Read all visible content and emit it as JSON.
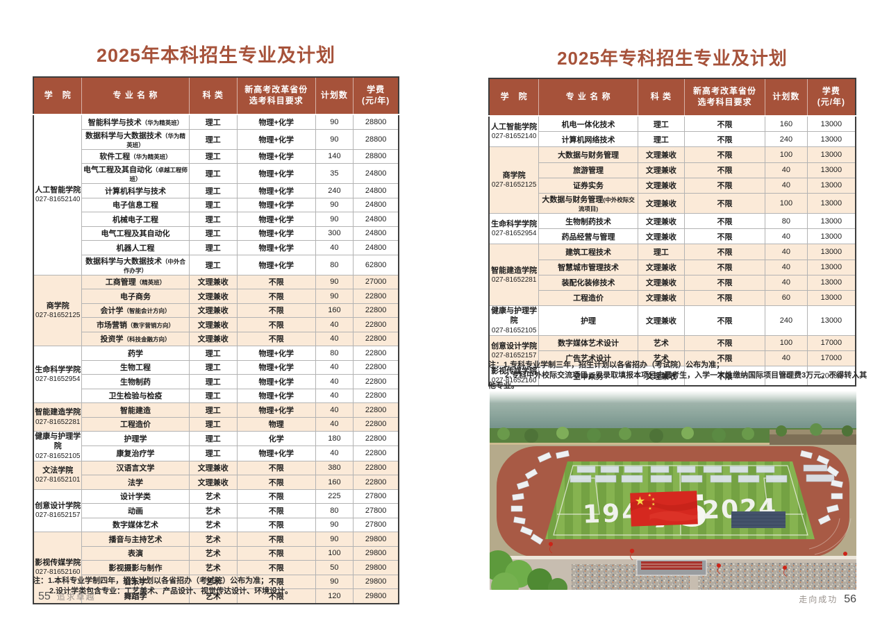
{
  "colors": {
    "accent": "#a6523a",
    "row_alt": "#fbead8",
    "flag_red": "#d5281f",
    "track_red": "#a85a45"
  },
  "left_table": {
    "title": "2025年本科招生专业及计划",
    "headers": [
      "学　院",
      "专 业 名 称",
      "科 类",
      "新高考改革省份\n选考科目要求",
      "计划数",
      "学费\n(元/年)"
    ],
    "groups": [
      {
        "college": "人工智能学院",
        "phone": "027-81652140",
        "rows": [
          {
            "major": "智能科学与技术（华为精英班）",
            "category": "理工",
            "subjects": "物理+化学",
            "plan": "90",
            "fee": "28800"
          },
          {
            "major": "数据科学与大数据技术（华为精英班）",
            "category": "理工",
            "subjects": "物理+化学",
            "plan": "90",
            "fee": "28800"
          },
          {
            "major": "软件工程（华为精英班）",
            "category": "理工",
            "subjects": "物理+化学",
            "plan": "140",
            "fee": "28800"
          },
          {
            "major": "电气工程及其自动化（卓越工程师班）",
            "category": "理工",
            "subjects": "物理+化学",
            "plan": "35",
            "fee": "24800"
          },
          {
            "major": "计算机科学与技术",
            "category": "理工",
            "subjects": "物理+化学",
            "plan": "240",
            "fee": "24800"
          },
          {
            "major": "电子信息工程",
            "category": "理工",
            "subjects": "物理+化学",
            "plan": "90",
            "fee": "24800"
          },
          {
            "major": "机械电子工程",
            "category": "理工",
            "subjects": "物理+化学",
            "plan": "90",
            "fee": "24800"
          },
          {
            "major": "电气工程及其自动化",
            "category": "理工",
            "subjects": "物理+化学",
            "plan": "300",
            "fee": "24800"
          },
          {
            "major": "机器人工程",
            "category": "理工",
            "subjects": "物理+化学",
            "plan": "40",
            "fee": "24800"
          },
          {
            "major": "数据科学与大数据技术（中外合作办学）",
            "category": "理工",
            "subjects": "物理+化学",
            "plan": "80",
            "fee": "62800"
          }
        ]
      },
      {
        "college": "商学院",
        "phone": "027-81652125",
        "rows": [
          {
            "major": "工商管理（精英班）",
            "category": "文理兼收",
            "subjects": "不限",
            "plan": "90",
            "fee": "27000"
          },
          {
            "major": "电子商务",
            "category": "文理兼收",
            "subjects": "不限",
            "plan": "90",
            "fee": "22800"
          },
          {
            "major": "会计学（智能会计方向）",
            "category": "文理兼收",
            "subjects": "不限",
            "plan": "160",
            "fee": "22800"
          },
          {
            "major": "市场营销（数字营销方向）",
            "category": "文理兼收",
            "subjects": "不限",
            "plan": "40",
            "fee": "22800"
          },
          {
            "major": "投资学（科技金融方向）",
            "category": "文理兼收",
            "subjects": "不限",
            "plan": "40",
            "fee": "22800"
          }
        ]
      },
      {
        "college": "生命科学学院",
        "phone": "027-81652954",
        "rows": [
          {
            "major": "药学",
            "category": "理工",
            "subjects": "物理+化学",
            "plan": "80",
            "fee": "22800"
          },
          {
            "major": "生物工程",
            "category": "理工",
            "subjects": "物理+化学",
            "plan": "40",
            "fee": "22800"
          },
          {
            "major": "生物制药",
            "category": "理工",
            "subjects": "物理+化学",
            "plan": "40",
            "fee": "22800"
          },
          {
            "major": "卫生检验与检疫",
            "category": "理工",
            "subjects": "物理+化学",
            "plan": "40",
            "fee": "22800"
          }
        ]
      },
      {
        "college": "智能建造学院",
        "phone": "027-81652281",
        "rows": [
          {
            "major": "智能建造",
            "category": "理工",
            "subjects": "物理+化学",
            "plan": "40",
            "fee": "22800"
          },
          {
            "major": "工程造价",
            "category": "理工",
            "subjects": "物理",
            "plan": "40",
            "fee": "22800"
          }
        ]
      },
      {
        "college": "健康与护理学院",
        "phone": "027-81652105",
        "rows": [
          {
            "major": "护理学",
            "category": "理工",
            "subjects": "化学",
            "plan": "180",
            "fee": "22800"
          },
          {
            "major": "康复治疗学",
            "category": "理工",
            "subjects": "物理+化学",
            "plan": "40",
            "fee": "22800"
          }
        ]
      },
      {
        "college": "文法学院",
        "phone": "027-81652101",
        "rows": [
          {
            "major": "汉语言文学",
            "category": "文理兼收",
            "subjects": "不限",
            "plan": "380",
            "fee": "22800"
          },
          {
            "major": "法学",
            "category": "文理兼收",
            "subjects": "不限",
            "plan": "160",
            "fee": "22800"
          }
        ]
      },
      {
        "college": "创意设计学院",
        "phone": "027-81652157",
        "rows": [
          {
            "major": "设计学类",
            "category": "艺术",
            "subjects": "不限",
            "plan": "225",
            "fee": "27800"
          },
          {
            "major": "动画",
            "category": "艺术",
            "subjects": "不限",
            "plan": "80",
            "fee": "27800"
          },
          {
            "major": "数字媒体艺术",
            "category": "艺术",
            "subjects": "不限",
            "plan": "90",
            "fee": "27800"
          }
        ]
      },
      {
        "college": "影视传媒学院",
        "phone": "027-81652160",
        "rows": [
          {
            "major": "播音与主持艺术",
            "category": "艺术",
            "subjects": "不限",
            "plan": "90",
            "fee": "29800"
          },
          {
            "major": "表演",
            "category": "艺术",
            "subjects": "不限",
            "plan": "100",
            "fee": "29800"
          },
          {
            "major": "影视摄影与制作",
            "category": "艺术",
            "subjects": "不限",
            "plan": "50",
            "fee": "29800"
          },
          {
            "major": "音乐学",
            "category": "艺术",
            "subjects": "不限",
            "plan": "90",
            "fee": "29800"
          },
          {
            "major": "舞蹈学",
            "category": "艺术",
            "subjects": "不限",
            "plan": "120",
            "fee": "29800"
          }
        ]
      }
    ],
    "note_label": "注：",
    "notes": [
      "1.本科专业学制四年，招生计划以各省招办（考试院）公布为准；",
      "2.设计学类包含专业：工艺美术、产品设计、视觉传达设计、环境设计。"
    ]
  },
  "right_table": {
    "title": "2025年专科招生专业及计划",
    "headers": [
      "学　院",
      "专 业 名 称",
      "科 类",
      "新高考改革省份\n选考科目要求",
      "计划数",
      "学费\n(元/年)"
    ],
    "groups": [
      {
        "college": "人工智能学院",
        "phone": "027-81652140",
        "rows": [
          {
            "major": "机电一体化技术",
            "category": "理工",
            "subjects": "不限",
            "plan": "160",
            "fee": "13000"
          },
          {
            "major": "计算机网络技术",
            "category": "理工",
            "subjects": "不限",
            "plan": "240",
            "fee": "13000"
          }
        ]
      },
      {
        "college": "商学院",
        "phone": "027-81652125",
        "rows": [
          {
            "major": "大数据与财务管理",
            "category": "文理兼收",
            "subjects": "不限",
            "plan": "100",
            "fee": "13000"
          },
          {
            "major": "旅游管理",
            "category": "文理兼收",
            "subjects": "不限",
            "plan": "40",
            "fee": "13000"
          },
          {
            "major": "证券实务",
            "category": "文理兼收",
            "subjects": "不限",
            "plan": "40",
            "fee": "13000"
          },
          {
            "major": "大数据与财务管理(中外校际交流项目)",
            "category": "文理兼收",
            "subjects": "不限",
            "plan": "100",
            "fee": "13000"
          }
        ]
      },
      {
        "college": "生命科学学院",
        "phone": "027-81652954",
        "rows": [
          {
            "major": "生物制药技术",
            "category": "文理兼收",
            "subjects": "不限",
            "plan": "80",
            "fee": "13000"
          },
          {
            "major": "药品经营与管理",
            "category": "文理兼收",
            "subjects": "不限",
            "plan": "40",
            "fee": "13000"
          }
        ]
      },
      {
        "college": "智能建造学院",
        "phone": "027-81652281",
        "rows": [
          {
            "major": "建筑工程技术",
            "category": "理工",
            "subjects": "不限",
            "plan": "40",
            "fee": "13000"
          },
          {
            "major": "智慧城市管理技术",
            "category": "文理兼收",
            "subjects": "不限",
            "plan": "40",
            "fee": "13000"
          },
          {
            "major": "装配化装修技术",
            "category": "文理兼收",
            "subjects": "不限",
            "plan": "40",
            "fee": "13000"
          },
          {
            "major": "工程造价",
            "category": "文理兼收",
            "subjects": "不限",
            "plan": "60",
            "fee": "13000"
          }
        ]
      },
      {
        "college": "健康与护理学院",
        "phone": "027-81652105",
        "rows": [
          {
            "major": "护理",
            "category": "文理兼收",
            "subjects": "不限",
            "plan": "240",
            "fee": "13000"
          }
        ]
      },
      {
        "college": "创意设计学院",
        "phone": "027-81652157",
        "rows": [
          {
            "major": "数字媒体艺术设计",
            "category": "艺术",
            "subjects": "不限",
            "plan": "100",
            "fee": "17000"
          },
          {
            "major": "广告艺术设计",
            "category": "艺术",
            "subjects": "不限",
            "plan": "40",
            "fee": "17000"
          }
        ]
      },
      {
        "college": "影视传媒学院",
        "phone": "027-81652160",
        "rows": [
          {
            "major": "空中乘务",
            "category": "文理兼收",
            "subjects": "不限",
            "plan": "40",
            "fee": "20000"
          }
        ]
      }
    ],
    "note_label": "注：",
    "notes": [
      "1.专科专业学制三年，招生计划以各省招办（考试院）公布为准；",
      "2.专科中外校际交流项目，只录取填报本项目志愿考生，入学一次性缴纳国际项目管理费3万元，不得转入其他专业。"
    ]
  },
  "photo": {
    "formation": [
      "1949",
      "75",
      "2024"
    ]
  },
  "footers": {
    "left": {
      "page_no": "55",
      "slogan": "追求卓越"
    },
    "right": {
      "slogan": "走向成功",
      "page_no": "56"
    }
  }
}
